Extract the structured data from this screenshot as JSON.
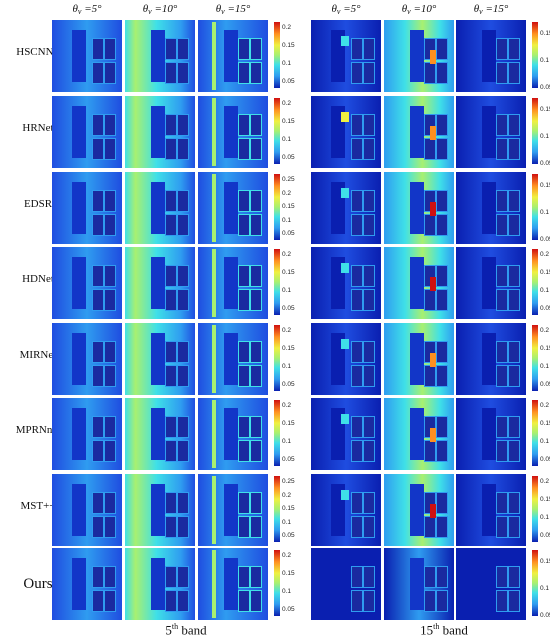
{
  "column_headers": [
    {
      "theta": "θ",
      "sub": "v",
      "rest": " =5°"
    },
    {
      "theta": "θ",
      "sub": "v",
      "rest": " =10°"
    },
    {
      "theta": "θ",
      "sub": "v",
      "rest": " =15°"
    }
  ],
  "groups": [
    {
      "label_main": "5",
      "label_sup": "th",
      "label_rest": " band"
    },
    {
      "label_main": "15",
      "label_sup": "th",
      "label_rest": " band"
    }
  ],
  "rows": [
    {
      "method": "HSCNN+",
      "ticks_left": [
        "0.2",
        "0.15",
        "0.1",
        "0.05"
      ],
      "ticks_right": [
        "0.15",
        "0.1",
        "0.05"
      ]
    },
    {
      "method": "HRNet",
      "ticks_left": [
        "0.2",
        "0.15",
        "0.1",
        "0.05"
      ],
      "ticks_right": [
        "0.15",
        "0.1",
        "0.05"
      ]
    },
    {
      "method": "EDSR",
      "ticks_left": [
        "0.25",
        "0.2",
        "0.15",
        "0.1",
        "0.05"
      ],
      "ticks_right": [
        "0.15",
        "0.1",
        "0.05"
      ]
    },
    {
      "method": "HDNet",
      "ticks_left": [
        "0.2",
        "0.15",
        "0.1",
        "0.05"
      ],
      "ticks_right": [
        "0.2",
        "0.15",
        "0.1",
        "0.05"
      ]
    },
    {
      "method": "MIRNet",
      "ticks_left": [
        "0.2",
        "0.15",
        "0.1",
        "0.05"
      ],
      "ticks_right": [
        "0.2",
        "0.15",
        "0.1",
        "0.05"
      ]
    },
    {
      "method": "MPRNnet",
      "ticks_left": [
        "0.2",
        "0.15",
        "0.1",
        "0.05"
      ],
      "ticks_right": [
        "0.2",
        "0.15",
        "0.1",
        "0.05"
      ]
    },
    {
      "method": "MST++",
      "ticks_left": [
        "0.25",
        "0.2",
        "0.15",
        "0.1",
        "0.05"
      ],
      "ticks_right": [
        "0.2",
        "0.15",
        "0.1",
        "0.05"
      ]
    },
    {
      "method": "Ours",
      "ticks_left": [
        "0.2",
        "0.15",
        "0.1",
        "0.05"
      ],
      "ticks_right": [
        "0.15",
        "0.1",
        "0.05"
      ]
    }
  ],
  "colors": {
    "deep": "#0a1fb0",
    "base": "#1f4de0",
    "mid": "#2f9cf0",
    "cyan": "#3fe0e8",
    "green": "#a8f070",
    "yellow": "#f0f040",
    "orange": "#ff9020",
    "red": "#d01010"
  }
}
